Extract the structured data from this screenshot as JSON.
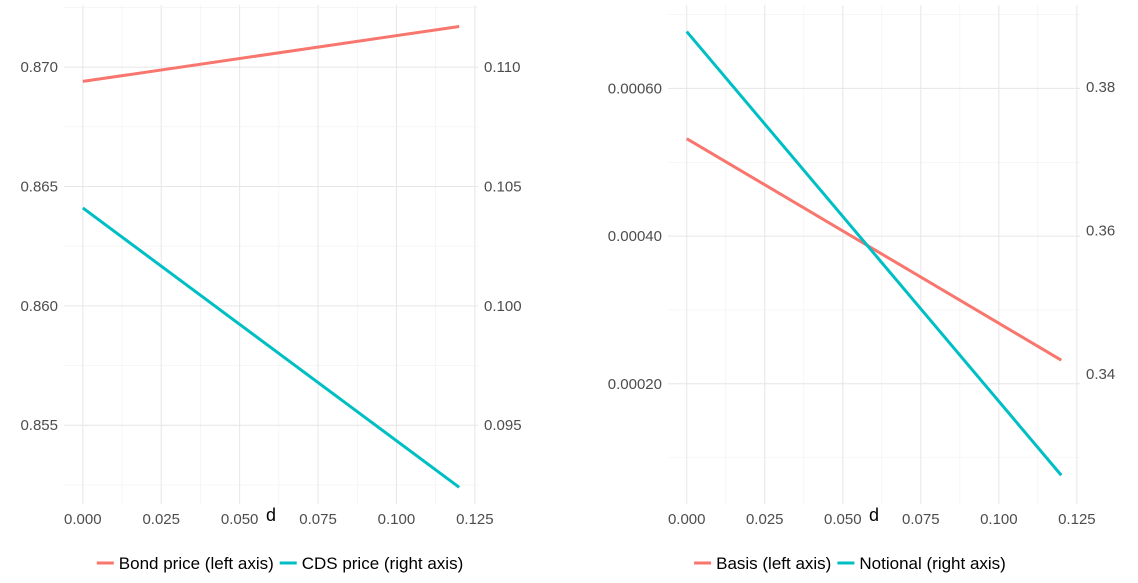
{
  "chart_data": [
    {
      "type": "line",
      "xlabel": "d",
      "xlim": [
        -0.006,
        0.126
      ],
      "x_ticks": [
        "0.000",
        "0.025",
        "0.050",
        "0.075",
        "0.100",
        "0.125"
      ],
      "y_left_ticks": [
        "0.855",
        "0.860",
        "0.865",
        "0.870"
      ],
      "y_right_ticks": [
        "0.095",
        "0.100",
        "0.105",
        "0.110"
      ],
      "ylim_left": [
        0.8517,
        0.8726
      ],
      "ylim_right": [
        0.0917,
        0.1126
      ],
      "grid": true,
      "legend_position": "bottom",
      "series": [
        {
          "name": "Bond price (left axis)",
          "axis": "left",
          "color": "#F8766D",
          "x": [
            0,
            0.12
          ],
          "y": [
            0.8694,
            0.8717
          ]
        },
        {
          "name": "CDS price (right axis)",
          "axis": "right",
          "color": "#00BFC4",
          "x": [
            0,
            0.12
          ],
          "y": [
            0.1041,
            0.0924
          ]
        }
      ]
    },
    {
      "type": "line",
      "xlabel": "d",
      "xlim": [
        -0.006,
        0.126
      ],
      "x_ticks": [
        "0.000",
        "0.025",
        "0.050",
        "0.075",
        "0.100",
        "0.125"
      ],
      "y_left_ticks": [
        "0.00020",
        "0.00040",
        "0.00060"
      ],
      "y_right_ticks": [
        "0.34",
        "0.36",
        "0.38"
      ],
      "ylim_left": [
        3.72e-05,
        0.000713
      ],
      "ylim_right": [
        0.3219,
        0.3914
      ],
      "grid": true,
      "legend_position": "bottom",
      "series": [
        {
          "name": "Basis (left axis)",
          "axis": "left",
          "color": "#F8766D",
          "x": [
            0,
            0.12
          ],
          "y": [
            0.000532,
            0.000232
          ]
        },
        {
          "name": "Notional (right axis)",
          "axis": "right",
          "color": "#00BFC4",
          "x": [
            0,
            0.12
          ],
          "y": [
            0.3877,
            0.3259
          ]
        }
      ]
    }
  ]
}
